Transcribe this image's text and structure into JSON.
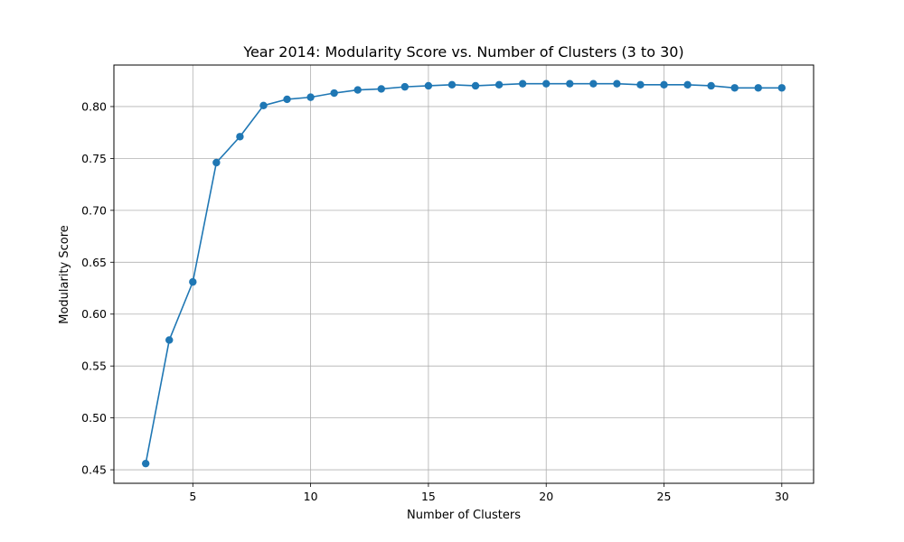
{
  "chart_data": {
    "type": "line",
    "title": "Year 2014: Modularity Score vs. Number of Clusters (3 to 30)",
    "xlabel": "Number of Clusters",
    "ylabel": "Modularity Score",
    "xlim": [
      1.65,
      31.35
    ],
    "ylim": [
      0.437,
      0.84
    ],
    "xticks": [
      5,
      10,
      15,
      20,
      25,
      30
    ],
    "xtick_labels": [
      "5",
      "10",
      "15",
      "20",
      "25",
      "30"
    ],
    "yticks": [
      0.45,
      0.5,
      0.55,
      0.6,
      0.65,
      0.7,
      0.75,
      0.8
    ],
    "ytick_labels": [
      "0.45",
      "0.50",
      "0.55",
      "0.60",
      "0.65",
      "0.70",
      "0.75",
      "0.80"
    ],
    "grid": true,
    "line_color": "#1f77b4",
    "grid_color": "#b0b0b0",
    "series": [
      {
        "marker": "circle",
        "x": [
          3,
          4,
          5,
          6,
          7,
          8,
          9,
          10,
          11,
          12,
          13,
          14,
          15,
          16,
          17,
          18,
          19,
          20,
          21,
          22,
          23,
          24,
          25,
          26,
          27,
          28,
          29,
          30
        ],
        "y": [
          0.456,
          0.575,
          0.631,
          0.746,
          0.771,
          0.801,
          0.807,
          0.809,
          0.813,
          0.816,
          0.817,
          0.819,
          0.82,
          0.821,
          0.82,
          0.821,
          0.822,
          0.822,
          0.822,
          0.822,
          0.822,
          0.821,
          0.821,
          0.821,
          0.82,
          0.818,
          0.818,
          0.818
        ]
      }
    ]
  }
}
